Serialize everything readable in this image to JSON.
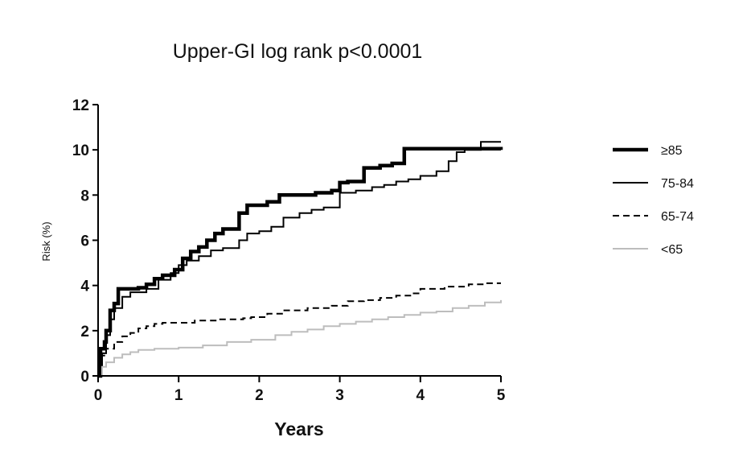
{
  "chart_data": {
    "type": "line",
    "title": "Upper-GI log rank p<0.0001",
    "xlabel": "Years",
    "ylabel": "Risk (%)",
    "xlim": [
      0,
      5
    ],
    "ylim": [
      0,
      12
    ],
    "xticks": [
      "0",
      "1",
      "2",
      "3",
      "4",
      "5"
    ],
    "yticks": [
      "0",
      "2",
      "4",
      "6",
      "8",
      "10",
      "12"
    ],
    "grid": false,
    "legend_position": "right",
    "series": [
      {
        "name": "≥85",
        "color": "#000000",
        "style": "thick-solid",
        "x": [
          0,
          0.03,
          0.08,
          0.1,
          0.15,
          0.2,
          0.25,
          0.5,
          0.6,
          0.7,
          0.8,
          0.95,
          1.05,
          1.15,
          1.25,
          1.35,
          1.45,
          1.55,
          1.75,
          1.85,
          2.1,
          2.25,
          2.5,
          2.7,
          2.9,
          3.0,
          3.1,
          3.3,
          3.5,
          3.65,
          3.8,
          4.0,
          4.2,
          4.5,
          5.0
        ],
        "y": [
          0.0,
          1.2,
          1.5,
          2.0,
          2.9,
          3.2,
          3.85,
          3.9,
          4.05,
          4.3,
          4.45,
          4.7,
          5.2,
          5.5,
          5.7,
          6.0,
          6.3,
          6.5,
          7.2,
          7.55,
          7.7,
          8.0,
          8.0,
          8.1,
          8.2,
          8.55,
          8.6,
          9.2,
          9.3,
          9.4,
          10.05,
          10.05,
          10.05,
          10.05,
          10.0
        ]
      },
      {
        "name": "75-84",
        "color": "#000000",
        "style": "solid",
        "x": [
          0,
          0.05,
          0.1,
          0.15,
          0.2,
          0.3,
          0.4,
          0.6,
          0.75,
          0.9,
          1.0,
          1.1,
          1.25,
          1.4,
          1.55,
          1.75,
          1.85,
          2.0,
          2.15,
          2.3,
          2.5,
          2.65,
          2.8,
          3.0,
          3.2,
          3.4,
          3.55,
          3.7,
          3.85,
          4.0,
          4.2,
          4.35,
          4.45,
          4.55,
          4.75,
          5.0
        ],
        "y": [
          0.3,
          1.0,
          1.8,
          2.5,
          3.0,
          3.5,
          3.7,
          3.85,
          4.25,
          4.55,
          4.9,
          5.1,
          5.3,
          5.55,
          5.65,
          6.0,
          6.3,
          6.4,
          6.6,
          7.0,
          7.2,
          7.35,
          7.45,
          8.1,
          8.2,
          8.35,
          8.45,
          8.6,
          8.7,
          8.85,
          9.05,
          9.5,
          9.9,
          10.0,
          10.35,
          10.35
        ]
      },
      {
        "name": "65-74",
        "color": "#000000",
        "style": "dashed",
        "x": [
          0,
          0.05,
          0.1,
          0.2,
          0.3,
          0.4,
          0.5,
          0.6,
          0.7,
          0.8,
          1.0,
          1.2,
          1.5,
          1.8,
          1.9,
          2.1,
          2.3,
          2.6,
          2.9,
          3.1,
          3.3,
          3.5,
          3.7,
          3.9,
          4.0,
          4.3,
          4.6,
          4.8,
          5.0
        ],
        "y": [
          0.0,
          0.9,
          1.2,
          1.5,
          1.75,
          1.9,
          2.1,
          2.2,
          2.3,
          2.35,
          2.35,
          2.45,
          2.5,
          2.55,
          2.6,
          2.75,
          2.9,
          3.0,
          3.1,
          3.3,
          3.35,
          3.45,
          3.55,
          3.65,
          3.85,
          3.95,
          4.05,
          4.1,
          4.1
        ]
      },
      {
        "name": "<65",
        "color": "#bdbdbd",
        "style": "solid-light",
        "x": [
          0,
          0.05,
          0.1,
          0.2,
          0.3,
          0.4,
          0.5,
          0.7,
          1.0,
          1.3,
          1.6,
          1.9,
          2.2,
          2.4,
          2.6,
          2.8,
          3.0,
          3.2,
          3.4,
          3.6,
          3.8,
          4.0,
          4.2,
          4.4,
          4.6,
          4.8,
          5.0
        ],
        "y": [
          0.0,
          0.4,
          0.6,
          0.8,
          0.95,
          1.05,
          1.15,
          1.2,
          1.25,
          1.35,
          1.5,
          1.6,
          1.8,
          1.95,
          2.05,
          2.2,
          2.3,
          2.4,
          2.5,
          2.6,
          2.7,
          2.8,
          2.85,
          3.0,
          3.1,
          3.25,
          3.35
        ]
      }
    ]
  }
}
